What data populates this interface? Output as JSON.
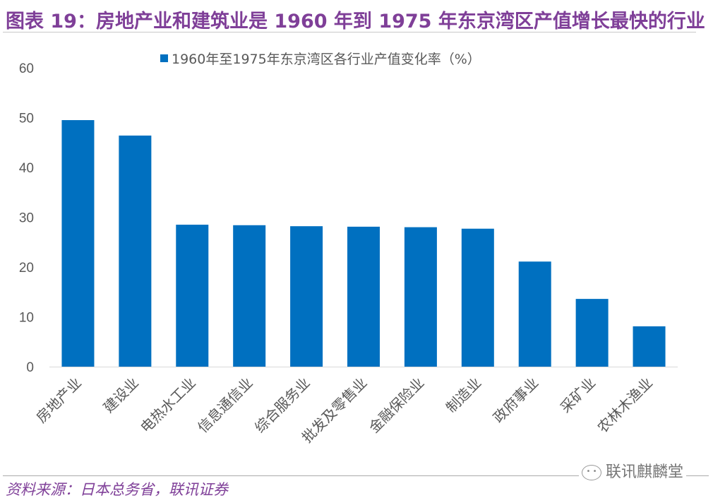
{
  "title": "图表 19：房地产业和建筑业是 1960 年到 1975 年东京湾区产值增长最快的行业",
  "source": "资料来源：日本总务省，联讯证券",
  "watermark": "联讯麒麟堂",
  "chart_data": {
    "type": "bar",
    "title": "",
    "xlabel": "",
    "ylabel": "",
    "ylim": [
      0,
      60
    ],
    "yticks": [
      0,
      10,
      20,
      30,
      40,
      50,
      60
    ],
    "grid": false,
    "legend_position": "top",
    "bar_color": "#0070C0",
    "categories": [
      "房地产业",
      "建设业",
      "电热水工业",
      "信息通信业",
      "综合服务业",
      "批发及零售业",
      "金融保险业",
      "制造业",
      "政府事业",
      "采矿业",
      "农林木渔业"
    ],
    "series": [
      {
        "name": "1960年至1975年东京湾区各行业产值变化率（%）",
        "values": [
          49.5,
          46.4,
          28.5,
          28.4,
          28.2,
          28.1,
          28.0,
          27.7,
          21.1,
          13.6,
          8.1
        ]
      }
    ]
  }
}
